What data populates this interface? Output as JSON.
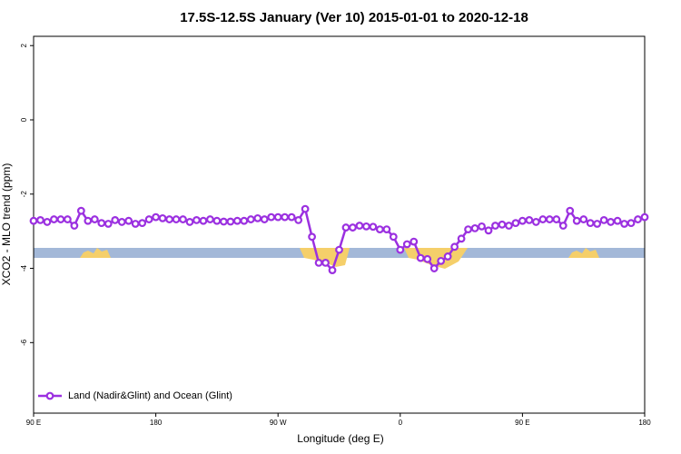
{
  "chart_data": {
    "type": "line",
    "title": "17.5S-12.5S January (Ver 10)   2015-01-01 to 2020-12-18",
    "xlabel": "Longitude (deg E)",
    "ylabel": "XCO2 - MLO trend (ppm)",
    "x": [
      90,
      95,
      100,
      105,
      110,
      115,
      120,
      125,
      130,
      135,
      140,
      145,
      150,
      155,
      160,
      165,
      170,
      175,
      180,
      185,
      190,
      195,
      200,
      205,
      210,
      215,
      220,
      225,
      230,
      235,
      240,
      245,
      250,
      255,
      260,
      265,
      270,
      275,
      280,
      285,
      290,
      295,
      300,
      305,
      310,
      315,
      320,
      325,
      330,
      335,
      340,
      345,
      350,
      355,
      360,
      365,
      370,
      375,
      380,
      385,
      390,
      395,
      400,
      405,
      410,
      415,
      420,
      425,
      430,
      435,
      440,
      445,
      450,
      455,
      460,
      465,
      470,
      475,
      480,
      485,
      490,
      495,
      500,
      505,
      510,
      515,
      520,
      525,
      530,
      535,
      540
    ],
    "series": [
      {
        "name": "Land (Nadir&Glint) and Ocean (Glint)",
        "color": "#9b30e0",
        "values": [
          -2.72,
          -2.7,
          -2.75,
          -2.68,
          -2.68,
          -2.68,
          -2.85,
          -2.45,
          -2.72,
          -2.68,
          -2.78,
          -2.8,
          -2.7,
          -2.75,
          -2.72,
          -2.8,
          -2.78,
          -2.68,
          -2.62,
          -2.65,
          -2.68,
          -2.68,
          -2.68,
          -2.75,
          -2.7,
          -2.72,
          -2.68,
          -2.72,
          -2.74,
          -2.74,
          -2.72,
          -2.72,
          -2.68,
          -2.65,
          -2.68,
          -2.62,
          -2.62,
          -2.62,
          -2.62,
          -2.7,
          -2.4,
          -3.15,
          -3.85,
          -3.85,
          -4.05,
          -3.5,
          -2.9,
          -2.9,
          -2.85,
          -2.87,
          -2.88,
          -2.95,
          -2.95,
          -3.15,
          -3.5,
          -3.35,
          -3.28,
          -3.72,
          -3.75,
          -4.0,
          -3.8,
          -3.68,
          -3.42,
          -3.2,
          -2.95,
          -2.92,
          -2.87,
          -2.98,
          -2.85,
          -2.82,
          -2.85,
          -2.78,
          -2.72,
          -2.7,
          -2.75,
          -2.68,
          -2.68,
          -2.68,
          -2.85,
          -2.45,
          -2.72,
          -2.68,
          -2.78,
          -2.8,
          -2.7,
          -2.75,
          -2.72,
          -2.8,
          -2.78,
          -2.68,
          -2.62
        ]
      }
    ],
    "xlim": [
      90,
      540
    ],
    "xticks": [
      {
        "value": 90,
        "label": "90 E"
      },
      {
        "value": 180,
        "label": "180"
      },
      {
        "value": 270,
        "label": "90 W"
      },
      {
        "value": 360,
        "label": "0"
      },
      {
        "value": 450,
        "label": "90 E"
      },
      {
        "value": 540,
        "label": "180"
      }
    ],
    "ylim": [
      -7.9,
      2.25
    ],
    "yticks": [
      2,
      0,
      -2,
      -4,
      -6
    ],
    "legend": "bottom-left"
  }
}
